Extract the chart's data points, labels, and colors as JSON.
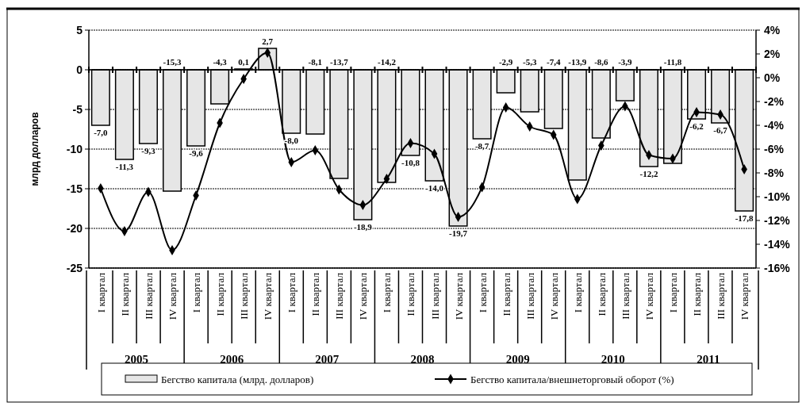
{
  "chart_data": {
    "type": "bar",
    "ylabel": "млрд долларов",
    "categories": [
      "I квартал",
      "II квартал",
      "III квартал",
      "IV квартал",
      "I квартал",
      "II квартал",
      "III квартал",
      "IV квартал",
      "I квартал",
      "II квартал",
      "III квартал",
      "IV квартал",
      "I квартал",
      "II квартал",
      "III квартал",
      "IV квартал",
      "I квартал",
      "II квартал",
      "III квартал",
      "IV квартал",
      "I квартал",
      "II квартал",
      "III квартал",
      "IV квартал",
      "I квартал",
      "II квартал",
      "III квартал",
      "IV квартал"
    ],
    "annotations": [
      "2005",
      "2006",
      "2007",
      "2008",
      "2009",
      "2010",
      "2011"
    ],
    "series": [
      {
        "name": "Бегство капитала  (млрд. долларов)",
        "color": "#e6e6e6",
        "values": [
          -7.0,
          -11.3,
          -9.3,
          -15.3,
          -9.6,
          -4.3,
          0.1,
          2.7,
          -8.0,
          -8.1,
          -13.7,
          -18.9,
          -14.2,
          -10.8,
          -14.0,
          -19.7,
          -8.7,
          -2.9,
          -5.3,
          -7.4,
          -13.9,
          -8.6,
          -3.9,
          -12.2,
          -11.8,
          -6.2,
          -6.7,
          -17.8
        ],
        "value_labels": [
          "-7,0",
          "-11,3",
          "-9,3",
          "-15,3",
          "-9,6",
          "-4,3",
          "0,1",
          "2,7",
          "-8,0",
          "-8,1",
          "-13,7",
          "-18,9",
          "-14,2",
          "-10,8",
          "-14,0",
          "-19,7",
          "-8,7",
          "-2,9",
          "-5,3",
          "-7,4",
          "-13,9",
          "-8,6",
          "-3,9",
          "-12,2",
          "-11,8",
          "-6,2",
          "-6,7",
          "-17,8"
        ]
      },
      {
        "name": "Бегство капитала/внешнеторговый оборот (%)",
        "type": "line",
        "axis": "y2",
        "color": "#000000",
        "values": [
          -9.3,
          -12.9,
          -9.6,
          -14.5,
          -9.9,
          -3.8,
          -0.1,
          2.1,
          -7.1,
          -6.1,
          -9.4,
          -10.7,
          -8.5,
          -5.5,
          -6.4,
          -11.7,
          -9.2,
          -2.5,
          -4.1,
          -4.8,
          -10.2,
          -5.7,
          -2.4,
          -6.5,
          -6.8,
          -2.9,
          -3.1,
          -7.7
        ]
      }
    ],
    "ylim": [
      -25,
      5
    ],
    "yticks": [
      5,
      0,
      -5,
      -10,
      -15,
      -20,
      -25
    ],
    "y2lim": [
      -16,
      4
    ],
    "y2ticks": [
      {
        "value": 4,
        "label": "4%"
      },
      {
        "value": 2,
        "label": "2%"
      },
      {
        "value": 0,
        "label": "0%"
      },
      {
        "value": -2,
        "label": "-2%"
      },
      {
        "value": -4,
        "label": "-4%"
      },
      {
        "value": -6,
        "label": "-6%"
      },
      {
        "value": -8,
        "label": "-8%"
      },
      {
        "value": -10,
        "label": "-10%"
      },
      {
        "value": -12,
        "label": "-12%"
      },
      {
        "value": -14,
        "label": "-14%"
      },
      {
        "value": -16,
        "label": "-16%"
      }
    ],
    "grid": "y",
    "legend": "bottom",
    "marker": "diamond",
    "line_style": "solid"
  }
}
